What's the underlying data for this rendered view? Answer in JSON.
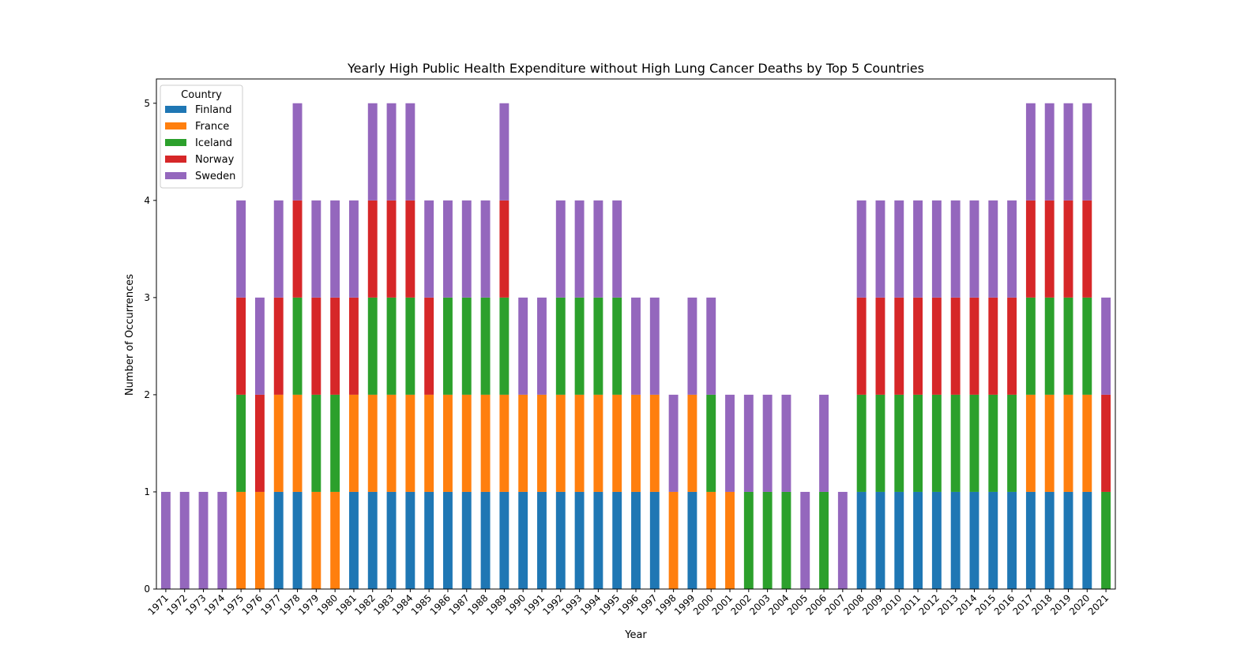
{
  "chart_data": {
    "type": "bar",
    "stacked": true,
    "title": "Yearly High Public Health Expenditure without High Lung Cancer Deaths by Top 5 Countries",
    "xlabel": "Year",
    "ylabel": "Number of Occurrences",
    "ylim": [
      0,
      5.25
    ],
    "yticks": [
      0,
      1,
      2,
      3,
      4,
      5
    ],
    "grid": false,
    "legend": {
      "title": "Country",
      "placement": "top-left"
    },
    "categories": [
      "1971",
      "1972",
      "1973",
      "1974",
      "1975",
      "1976",
      "1977",
      "1978",
      "1979",
      "1980",
      "1981",
      "1982",
      "1983",
      "1984",
      "1985",
      "1986",
      "1987",
      "1988",
      "1989",
      "1990",
      "1991",
      "1992",
      "1993",
      "1994",
      "1995",
      "1996",
      "1997",
      "1998",
      "1999",
      "2000",
      "2001",
      "2002",
      "2003",
      "2004",
      "2005",
      "2006",
      "2007",
      "2008",
      "2009",
      "2010",
      "2011",
      "2012",
      "2013",
      "2014",
      "2015",
      "2016",
      "2017",
      "2018",
      "2019",
      "2020",
      "2021"
    ],
    "series": [
      {
        "name": "Finland",
        "color": "#1f77b4",
        "values": [
          0,
          0,
          0,
          0,
          0,
          0,
          1,
          1,
          0,
          0,
          1,
          1,
          1,
          1,
          1,
          1,
          1,
          1,
          1,
          1,
          1,
          1,
          1,
          1,
          1,
          1,
          1,
          0,
          1,
          0,
          0,
          0,
          0,
          0,
          0,
          0,
          0,
          1,
          1,
          1,
          1,
          1,
          1,
          1,
          1,
          1,
          1,
          1,
          1,
          1,
          0
        ]
      },
      {
        "name": "France",
        "color": "#ff7f0e",
        "values": [
          0,
          0,
          0,
          0,
          1,
          1,
          1,
          1,
          1,
          1,
          1,
          1,
          1,
          1,
          1,
          1,
          1,
          1,
          1,
          1,
          1,
          1,
          1,
          1,
          1,
          1,
          1,
          1,
          1,
          1,
          1,
          0,
          0,
          0,
          0,
          0,
          0,
          0,
          0,
          0,
          0,
          0,
          0,
          0,
          0,
          0,
          1,
          1,
          1,
          1,
          0
        ]
      },
      {
        "name": "Iceland",
        "color": "#2ca02c",
        "values": [
          0,
          0,
          0,
          0,
          1,
          0,
          0,
          1,
          1,
          1,
          0,
          1,
          1,
          1,
          0,
          1,
          1,
          1,
          1,
          0,
          0,
          1,
          1,
          1,
          1,
          0,
          0,
          0,
          0,
          1,
          0,
          1,
          1,
          1,
          0,
          1,
          0,
          1,
          1,
          1,
          1,
          1,
          1,
          1,
          1,
          1,
          1,
          1,
          1,
          1,
          1
        ]
      },
      {
        "name": "Norway",
        "color": "#d62728",
        "values": [
          0,
          0,
          0,
          0,
          1,
          1,
          1,
          1,
          1,
          1,
          1,
          1,
          1,
          1,
          1,
          0,
          0,
          0,
          1,
          0,
          0,
          0,
          0,
          0,
          0,
          0,
          0,
          0,
          0,
          0,
          0,
          0,
          0,
          0,
          0,
          0,
          0,
          1,
          1,
          1,
          1,
          1,
          1,
          1,
          1,
          1,
          1,
          1,
          1,
          1,
          1
        ]
      },
      {
        "name": "Sweden",
        "color": "#9467bd",
        "values": [
          1,
          1,
          1,
          1,
          1,
          1,
          1,
          1,
          1,
          1,
          1,
          1,
          1,
          1,
          1,
          1,
          1,
          1,
          1,
          1,
          1,
          1,
          1,
          1,
          1,
          1,
          1,
          1,
          1,
          1,
          1,
          1,
          1,
          1,
          1,
          1,
          1,
          1,
          1,
          1,
          1,
          1,
          1,
          1,
          1,
          1,
          1,
          1,
          1,
          1,
          1
        ]
      }
    ]
  }
}
